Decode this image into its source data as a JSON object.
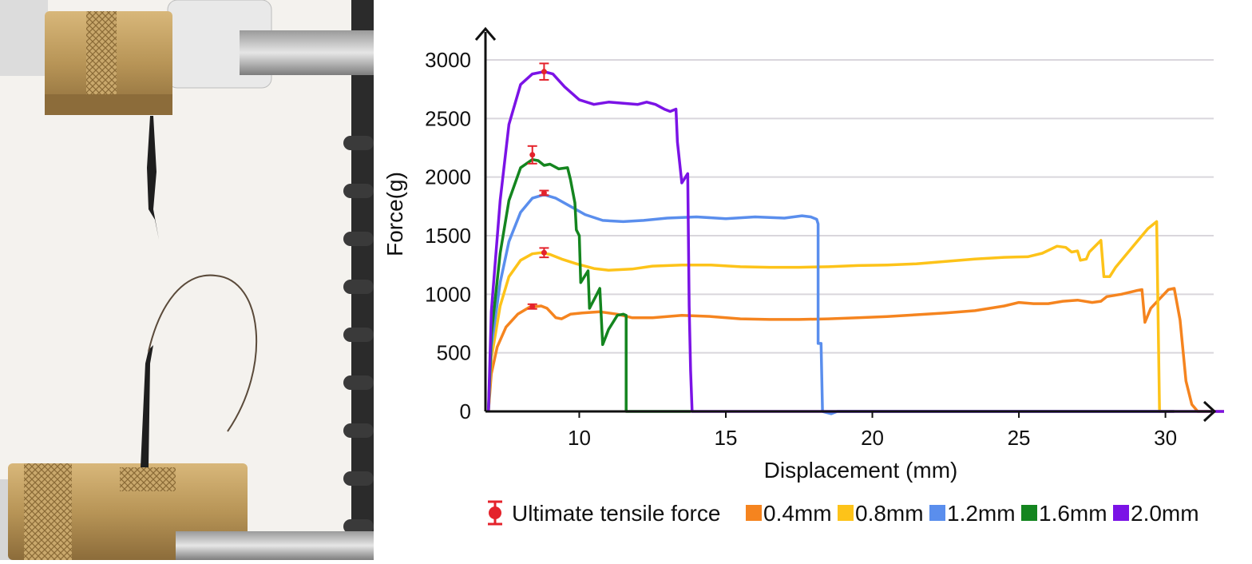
{
  "figure": {
    "photo_panel": {
      "content": "tensile test specimen between grips"
    }
  },
  "chart_data": {
    "type": "line",
    "xlabel": "Displacement (mm)",
    "ylabel": "Force(g)",
    "xlim": [
      6.8,
      32
    ],
    "ylim": [
      0,
      3000
    ],
    "x_ticks": [
      10,
      15,
      20,
      25,
      30
    ],
    "y_ticks": [
      0,
      500,
      1000,
      1500,
      2000,
      2500,
      3000
    ],
    "grid": "horizontal",
    "legend_position": "bottom",
    "series": [
      {
        "name": "0.4mm",
        "color": "#f5841f",
        "points": [
          [
            6.9,
            0
          ],
          [
            7.0,
            320
          ],
          [
            7.2,
            550
          ],
          [
            7.5,
            720
          ],
          [
            7.9,
            830
          ],
          [
            8.3,
            890
          ],
          [
            8.7,
            900
          ],
          [
            8.9,
            880
          ],
          [
            9.2,
            800
          ],
          [
            9.4,
            790
          ],
          [
            9.7,
            830
          ],
          [
            10.1,
            840
          ],
          [
            10.7,
            850
          ],
          [
            11.3,
            830
          ],
          [
            11.8,
            800
          ],
          [
            12.5,
            800
          ],
          [
            13.5,
            820
          ],
          [
            14.5,
            810
          ],
          [
            15.5,
            790
          ],
          [
            16.5,
            785
          ],
          [
            17.5,
            785
          ],
          [
            18.5,
            790
          ],
          [
            19.5,
            800
          ],
          [
            20.5,
            810
          ],
          [
            21.5,
            825
          ],
          [
            22.5,
            840
          ],
          [
            23.5,
            860
          ],
          [
            24.5,
            900
          ],
          [
            25.0,
            930
          ],
          [
            25.5,
            920
          ],
          [
            26.0,
            920
          ],
          [
            26.5,
            940
          ],
          [
            27.0,
            950
          ],
          [
            27.5,
            930
          ],
          [
            27.8,
            940
          ],
          [
            28.0,
            980
          ],
          [
            28.5,
            1000
          ],
          [
            29.0,
            1030
          ],
          [
            29.2,
            1040
          ],
          [
            29.3,
            760
          ],
          [
            29.5,
            880
          ],
          [
            29.8,
            960
          ],
          [
            30.1,
            1040
          ],
          [
            30.3,
            1050
          ],
          [
            30.5,
            780
          ],
          [
            30.7,
            260
          ],
          [
            30.9,
            60
          ],
          [
            31.1,
            0
          ],
          [
            32,
            0
          ]
        ]
      },
      {
        "name": "0.8mm",
        "color": "#fdc319",
        "points": [
          [
            6.9,
            0
          ],
          [
            7.0,
            450
          ],
          [
            7.3,
            900
          ],
          [
            7.6,
            1150
          ],
          [
            8.0,
            1290
          ],
          [
            8.4,
            1345
          ],
          [
            8.7,
            1355
          ],
          [
            9.0,
            1340
          ],
          [
            9.4,
            1300
          ],
          [
            9.9,
            1260
          ],
          [
            10.5,
            1220
          ],
          [
            11.0,
            1205
          ],
          [
            11.8,
            1215
          ],
          [
            12.5,
            1240
          ],
          [
            13.5,
            1250
          ],
          [
            14.5,
            1250
          ],
          [
            15.5,
            1235
          ],
          [
            16.5,
            1230
          ],
          [
            17.5,
            1230
          ],
          [
            18.5,
            1235
          ],
          [
            19.5,
            1245
          ],
          [
            20.5,
            1250
          ],
          [
            21.5,
            1260
          ],
          [
            22.5,
            1280
          ],
          [
            23.5,
            1300
          ],
          [
            24.5,
            1315
          ],
          [
            25.3,
            1320
          ],
          [
            25.8,
            1350
          ],
          [
            26.3,
            1410
          ],
          [
            26.6,
            1400
          ],
          [
            26.8,
            1360
          ],
          [
            27.0,
            1370
          ],
          [
            27.1,
            1290
          ],
          [
            27.3,
            1300
          ],
          [
            27.4,
            1360
          ],
          [
            27.8,
            1460
          ],
          [
            27.9,
            1150
          ],
          [
            28.1,
            1150
          ],
          [
            28.3,
            1230
          ],
          [
            28.6,
            1320
          ],
          [
            29.0,
            1440
          ],
          [
            29.4,
            1560
          ],
          [
            29.7,
            1620
          ],
          [
            29.8,
            0
          ],
          [
            30.3,
            0
          ]
        ]
      },
      {
        "name": "1.2mm",
        "color": "#5a8eed",
        "points": [
          [
            6.9,
            0
          ],
          [
            7.0,
            550
          ],
          [
            7.3,
            1100
          ],
          [
            7.6,
            1450
          ],
          [
            8.0,
            1700
          ],
          [
            8.4,
            1820
          ],
          [
            8.8,
            1850
          ],
          [
            9.2,
            1820
          ],
          [
            9.7,
            1750
          ],
          [
            10.2,
            1680
          ],
          [
            10.8,
            1630
          ],
          [
            11.5,
            1620
          ],
          [
            12.2,
            1630
          ],
          [
            13.0,
            1650
          ],
          [
            14.0,
            1660
          ],
          [
            15.0,
            1645
          ],
          [
            16.0,
            1660
          ],
          [
            17.0,
            1650
          ],
          [
            17.6,
            1670
          ],
          [
            17.9,
            1660
          ],
          [
            18.1,
            1640
          ],
          [
            18.15,
            1600
          ],
          [
            18.15,
            580
          ],
          [
            18.25,
            580
          ],
          [
            18.3,
            0
          ],
          [
            18.6,
            -20
          ],
          [
            18.8,
            0
          ],
          [
            30.3,
            0
          ]
        ]
      },
      {
        "name": "1.6mm",
        "color": "#14851f",
        "points": [
          [
            6.9,
            0
          ],
          [
            7.0,
            650
          ],
          [
            7.3,
            1350
          ],
          [
            7.6,
            1800
          ],
          [
            8.0,
            2080
          ],
          [
            8.4,
            2150
          ],
          [
            8.6,
            2140
          ],
          [
            8.8,
            2100
          ],
          [
            9.0,
            2110
          ],
          [
            9.3,
            2070
          ],
          [
            9.6,
            2080
          ],
          [
            9.7,
            1980
          ],
          [
            9.85,
            1780
          ],
          [
            9.9,
            1550
          ],
          [
            10.0,
            1500
          ],
          [
            10.05,
            1100
          ],
          [
            10.3,
            1200
          ],
          [
            10.35,
            880
          ],
          [
            10.6,
            1000
          ],
          [
            10.7,
            1050
          ],
          [
            10.8,
            570
          ],
          [
            11.0,
            700
          ],
          [
            11.3,
            820
          ],
          [
            11.5,
            830
          ],
          [
            11.6,
            820
          ],
          [
            11.6,
            0
          ],
          [
            13.8,
            0
          ]
        ]
      },
      {
        "name": "2.0mm",
        "color": "#7b13e6",
        "points": [
          [
            6.9,
            0
          ],
          [
            7.0,
            850
          ],
          [
            7.3,
            1800
          ],
          [
            7.6,
            2450
          ],
          [
            8.0,
            2790
          ],
          [
            8.4,
            2880
          ],
          [
            8.8,
            2900
          ],
          [
            9.1,
            2880
          ],
          [
            9.5,
            2770
          ],
          [
            10.0,
            2660
          ],
          [
            10.5,
            2620
          ],
          [
            11.0,
            2640
          ],
          [
            11.5,
            2630
          ],
          [
            12.0,
            2620
          ],
          [
            12.3,
            2640
          ],
          [
            12.6,
            2620
          ],
          [
            12.9,
            2580
          ],
          [
            13.1,
            2560
          ],
          [
            13.3,
            2580
          ],
          [
            13.35,
            2300
          ],
          [
            13.5,
            1950
          ],
          [
            13.7,
            2030
          ],
          [
            13.75,
            900
          ],
          [
            13.8,
            350
          ],
          [
            13.85,
            0
          ],
          [
            32,
            0
          ]
        ]
      }
    ],
    "error_bars": {
      "name": "Ultimate tensile force",
      "color": "#e4222b",
      "points": [
        {
          "x": 8.4,
          "y": 895,
          "err": 20
        },
        {
          "x": 8.8,
          "y": 1355,
          "err": 40
        },
        {
          "x": 8.8,
          "y": 1865,
          "err": 20
        },
        {
          "x": 8.4,
          "y": 2190,
          "err": 75
        },
        {
          "x": 8.8,
          "y": 2900,
          "err": 70
        }
      ]
    }
  }
}
